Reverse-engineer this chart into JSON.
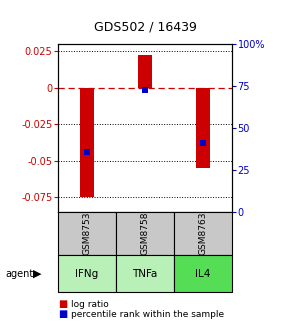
{
  "title": "GDS502 / 16439",
  "categories": [
    "GSM8753",
    "GSM8758",
    "GSM8763"
  ],
  "agents": [
    "IFNg",
    "TNFa",
    "IL4"
  ],
  "bar_values": [
    -0.075,
    0.022,
    -0.055
  ],
  "percentile_values": [
    -0.044,
    -0.002,
    -0.038
  ],
  "ylim_left": [
    -0.085,
    0.03
  ],
  "ylim_right": [
    0,
    100
  ],
  "left_ticks": [
    0.025,
    0,
    -0.025,
    -0.05,
    -0.075
  ],
  "right_ticks": [
    100,
    75,
    50,
    25,
    0
  ],
  "bar_color": "#cc0000",
  "percentile_color": "#0000cc",
  "zero_line_color": "#cc0000",
  "gsm_box_color": "#c8c8c8",
  "agent_colors": [
    "#b8f0b8",
    "#b8f0b8",
    "#55dd55"
  ],
  "bar_width": 0.25
}
